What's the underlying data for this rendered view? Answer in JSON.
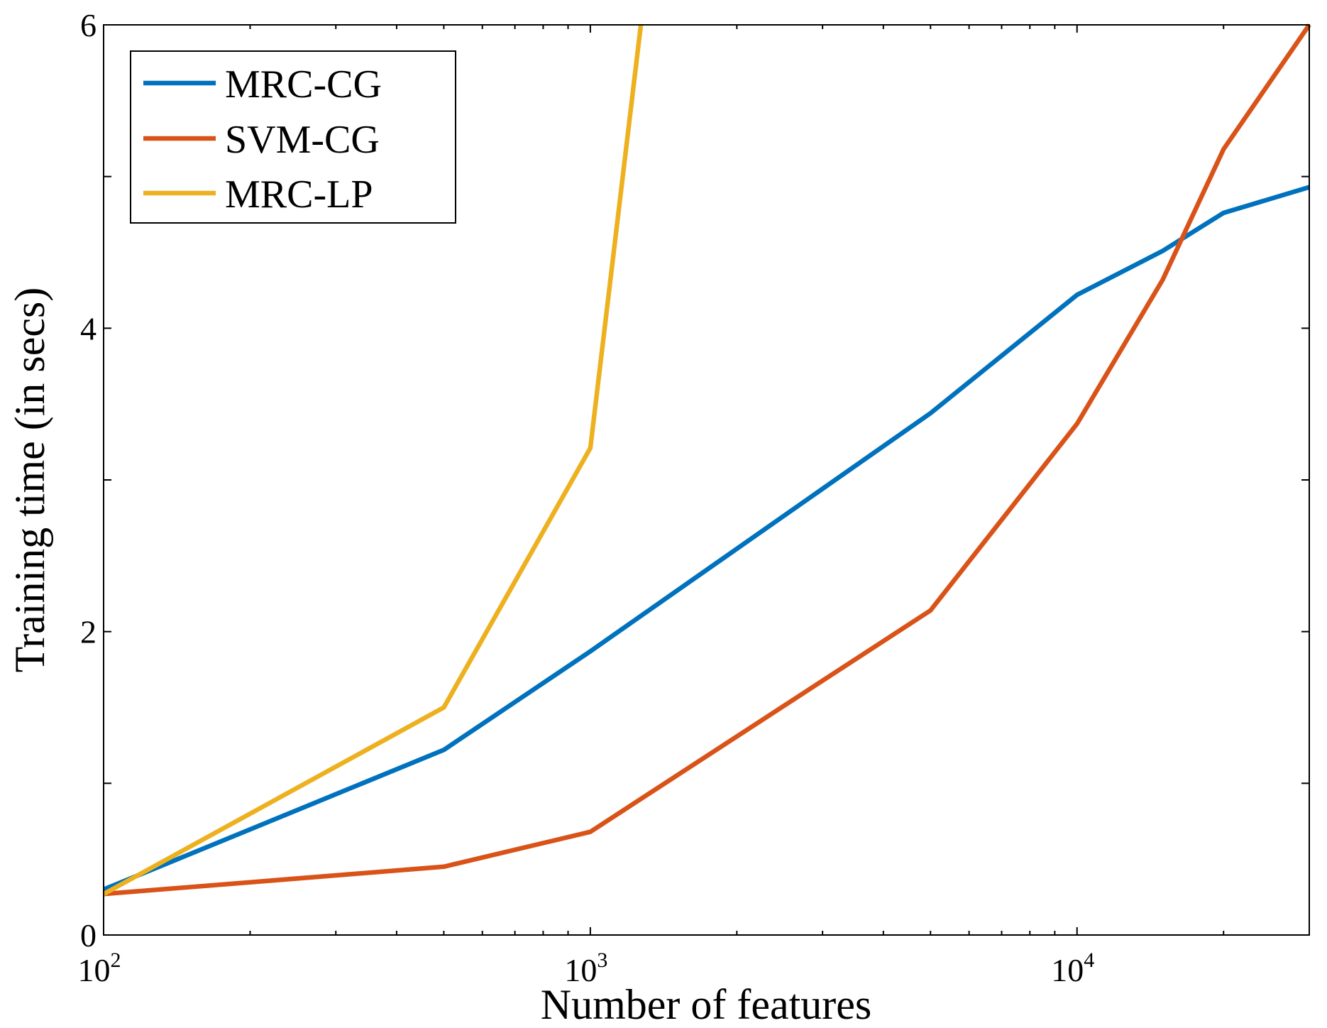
{
  "chart_data": {
    "type": "line",
    "title": "",
    "xlabel": "Number of features",
    "ylabel": "Training time (in secs)",
    "xscale": "log",
    "xlim": [
      100,
      30000
    ],
    "ylim": [
      0,
      6
    ],
    "grid": false,
    "legend_position": "top-left",
    "x_ticks": [
      {
        "value": 100,
        "base": "10",
        "exp": "2"
      },
      {
        "value": 1000,
        "base": "10",
        "exp": "3"
      },
      {
        "value": 10000,
        "base": "10",
        "exp": "4"
      }
    ],
    "y_ticks": [
      {
        "value": 0,
        "label": "0"
      },
      {
        "value": 2,
        "label": "2"
      },
      {
        "value": 4,
        "label": "4"
      },
      {
        "value": 6,
        "label": "6"
      }
    ],
    "y_minor_ticks": [
      1,
      3,
      5
    ],
    "series": [
      {
        "name": "MRC-CG",
        "color": "#0072BD",
        "x": [
          100,
          500,
          1000,
          5000,
          10000,
          15000,
          20000,
          30000
        ],
        "y": [
          0.3,
          1.22,
          1.87,
          3.44,
          4.22,
          4.51,
          4.76,
          4.93
        ]
      },
      {
        "name": "SVM-CG",
        "color": "#D95319",
        "x": [
          100,
          500,
          1000,
          5000,
          10000,
          15000,
          20000,
          30000
        ],
        "y": [
          0.27,
          0.45,
          0.68,
          2.14,
          3.37,
          4.32,
          5.18,
          6.0
        ]
      },
      {
        "name": "MRC-LP",
        "color": "#EDB120",
        "x": [
          100,
          500,
          1000,
          1270
        ],
        "y": [
          0.27,
          1.5,
          3.21,
          6.0
        ]
      }
    ]
  }
}
